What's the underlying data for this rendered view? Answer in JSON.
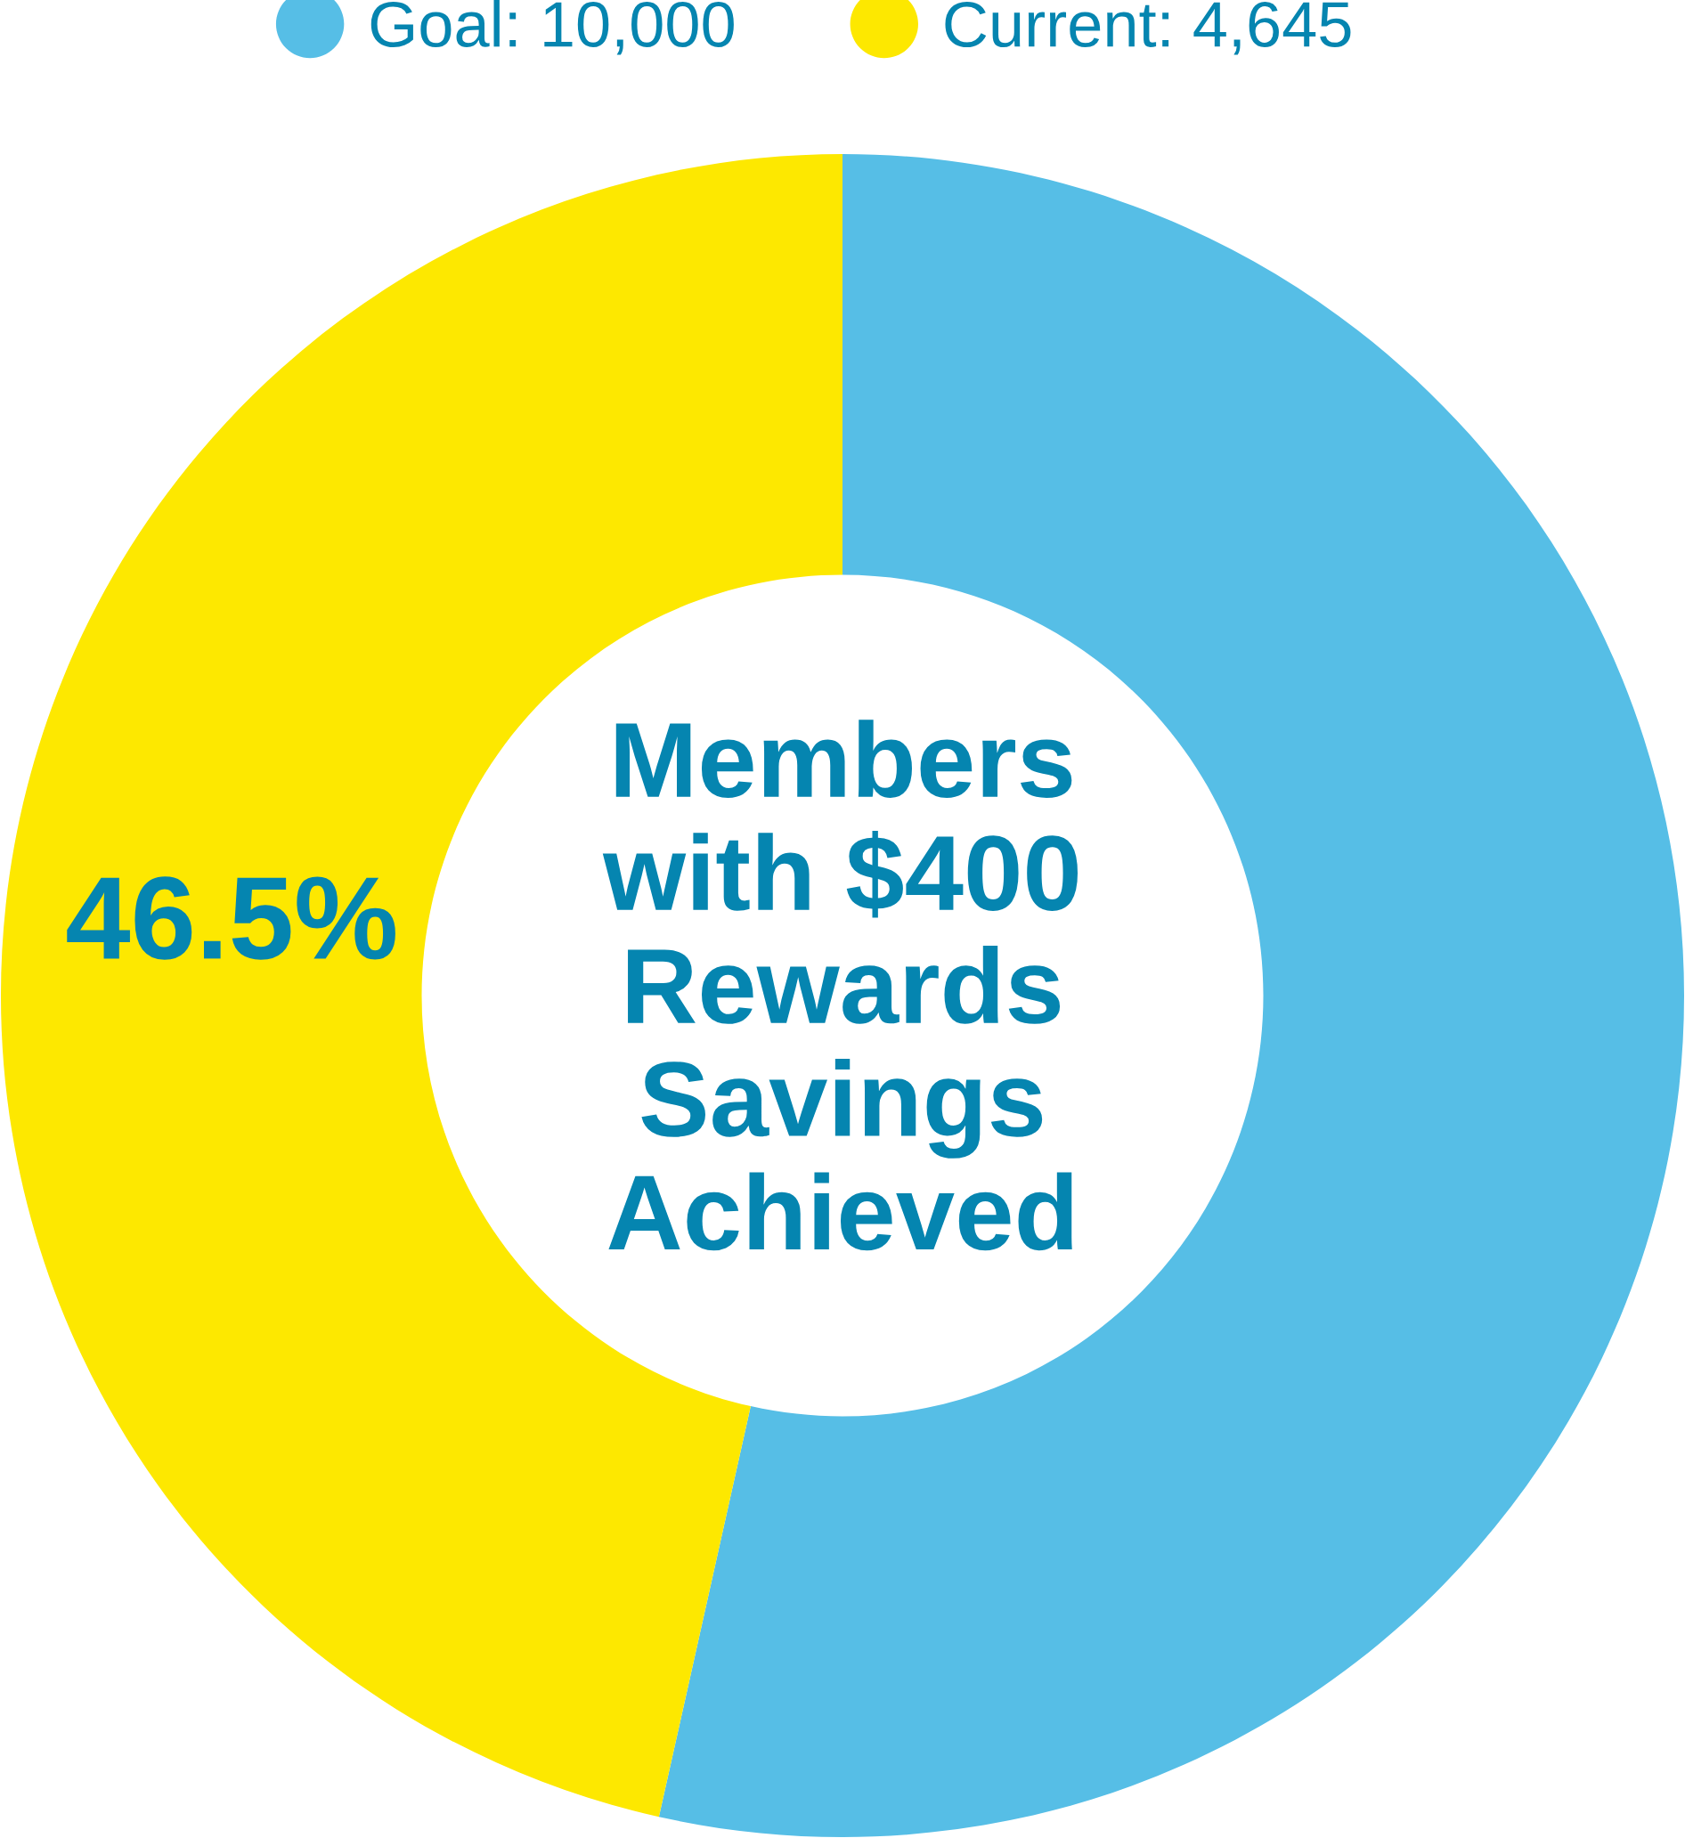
{
  "chart_data": {
    "type": "donut",
    "title": "Members\nwith $400\nRewards\nSavings\nAchieved",
    "categories": [
      "Goal: 10,000",
      "Current: 4,645"
    ],
    "values": [
      53.5,
      46.5
    ],
    "colors": [
      "#56bee6",
      "#fde800"
    ],
    "value_labels": [
      null,
      "46.5%"
    ],
    "legend": "top"
  }
}
